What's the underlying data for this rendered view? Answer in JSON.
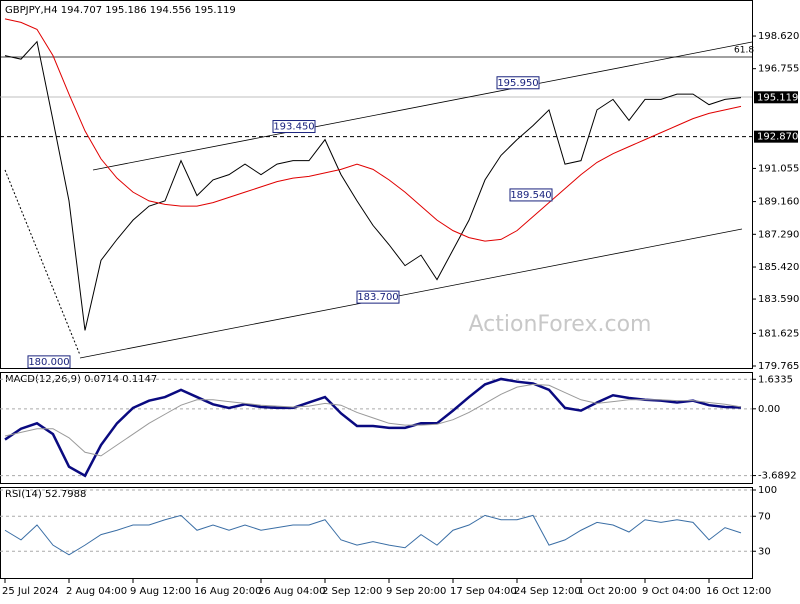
{
  "chart_data": [
    {
      "type": "line",
      "title": "GBPJPY,H4  194.707 195.186 194.556 195.119",
      "ylim": [
        179.65,
        200.68
      ],
      "yticks": [
        {
          "value": 198.62,
          "label": "198.620"
        },
        196.755,
        191.055,
        {
          "value": 189.16,
          "label": "189.160"
        },
        {
          "value": 187.29,
          "label": "187.290"
        },
        {
          "value": 185.42,
          "label": "185.420"
        },
        {
          "value": 183.59,
          "label": "183.590"
        },
        181.625,
        179.765
      ],
      "series": [
        {
          "color": "#000000",
          "values": [
            197.5,
            197.3,
            198.3,
            193.8,
            189.2,
            181.8,
            185.8,
            187.0,
            188.1,
            188.9,
            189.2,
            191.5,
            189.5,
            190.4,
            190.7,
            191.3,
            190.7,
            191.3,
            191.5,
            191.5,
            192.7,
            190.7,
            189.2,
            187.8,
            186.7,
            185.5,
            186.1,
            184.7,
            186.4,
            188.1,
            190.4,
            191.8,
            192.7,
            193.5,
            194.4,
            191.3,
            191.5,
            194.4,
            195.0,
            193.8,
            195.0,
            195.0,
            195.3,
            195.3,
            194.7,
            195.0,
            195.1
          ]
        },
        {
          "color": "#e00000",
          "values": [
            199.6,
            199.4,
            199.0,
            197.5,
            195.3,
            193.2,
            191.6,
            190.5,
            189.7,
            189.2,
            189.0,
            188.9,
            188.9,
            189.1,
            189.4,
            189.7,
            190.0,
            190.3,
            190.5,
            190.6,
            190.8,
            191.0,
            191.3,
            191.0,
            190.4,
            189.7,
            188.9,
            188.1,
            187.5,
            187.1,
            186.9,
            187.0,
            187.5,
            188.3,
            189.1,
            189.9,
            190.7,
            191.4,
            191.9,
            192.3,
            192.7,
            193.1,
            193.5,
            193.9,
            194.2,
            194.4,
            194.6
          ]
        }
      ],
      "price_labels": [
        195.119,
        {
          "value": 192.87,
          "label": "192.870"
        }
      ],
      "annotations": [
        {
          "value": 180,
          "label": "180.000"
        },
        {
          "value": 183.7,
          "label": "183.700"
        },
        {
          "value": 189.54,
          "label": "189.540"
        },
        {
          "value": 193.45,
          "label": "193.450"
        },
        {
          "value": 195.95,
          "label": "195.950"
        }
      ],
      "fib_label": "61.8",
      "watermark": "ActionForex.com"
    },
    {
      "type": "line",
      "title": "MACD(12,26,9) 0.0714 0.1147",
      "ylim": [
        -4.1,
        1.98
      ],
      "yticks": [
        1.6335,
        {
          "value": 0,
          "label": "0.00"
        },
        -3.6892
      ],
      "grid": true,
      "series": [
        {
          "color": "#0a0a80",
          "values": [
            -1.7,
            -1.1,
            -0.8,
            -1.4,
            -3.2,
            -3.7,
            -2.0,
            -0.8,
            0.05,
            0.45,
            0.65,
            1.05,
            0.65,
            0.25,
            0.05,
            0.25,
            0.1,
            0.05,
            0.05,
            0.35,
            0.65,
            -0.25,
            -0.95,
            -0.95,
            -1.05,
            -1.05,
            -0.8,
            -0.8,
            -0.1,
            0.65,
            1.35,
            1.65,
            1.5,
            1.4,
            1.05,
            0.05,
            -0.1,
            0.35,
            0.75,
            0.6,
            0.5,
            0.45,
            0.35,
            0.45,
            0.2,
            0.1,
            0.07
          ]
        },
        {
          "color": "#9a9a9a",
          "values": [
            -1.5,
            -1.3,
            -1.1,
            -1.1,
            -1.6,
            -2.4,
            -2.6,
            -2.0,
            -1.4,
            -0.8,
            -0.3,
            0.2,
            0.5,
            0.5,
            0.4,
            0.3,
            0.2,
            0.15,
            0.1,
            0.15,
            0.3,
            0.2,
            -0.2,
            -0.5,
            -0.8,
            -0.9,
            -0.9,
            -0.85,
            -0.6,
            -0.2,
            0.3,
            0.8,
            1.2,
            1.35,
            1.3,
            0.9,
            0.5,
            0.3,
            0.4,
            0.5,
            0.5,
            0.5,
            0.45,
            0.45,
            0.35,
            0.25,
            0.11
          ]
        }
      ]
    },
    {
      "type": "line",
      "title": "RSI(14) 52.7988",
      "ylim": [
        0,
        100
      ],
      "yticks": [
        100,
        70,
        30
      ],
      "grid": true,
      "categories": [
        "25 Jul 2024",
        null,
        null,
        null,
        "2 Aug 04:00",
        null,
        null,
        null,
        "9 Aug 12:00",
        null,
        null,
        null,
        "16 Aug 20:00",
        null,
        null,
        null,
        "26 Aug 04:00",
        null,
        null,
        null,
        "2 Sep 12:00",
        null,
        null,
        null,
        "9 Sep 20:00",
        null,
        null,
        null,
        "17 Sep 04:00",
        null,
        null,
        null,
        "24 Sep 12:00",
        null,
        null,
        null,
        "1 Oct 20:00",
        null,
        null,
        null,
        "9 Oct 04:00",
        null,
        null,
        null,
        "16 Oct 12:00",
        null,
        null
      ],
      "series": [
        {
          "color": "#3a6ea5",
          "values": [
            54,
            43,
            60,
            37,
            26,
            37,
            49,
            54,
            60,
            60,
            66,
            71,
            54,
            60,
            54,
            60,
            54,
            57,
            60,
            60,
            66,
            43,
            37,
            41,
            37,
            34,
            49,
            37,
            54,
            60,
            71,
            66,
            66,
            71,
            37,
            43,
            54,
            63,
            60,
            52,
            66,
            63,
            66,
            63,
            43,
            57,
            51
          ]
        }
      ]
    }
  ]
}
